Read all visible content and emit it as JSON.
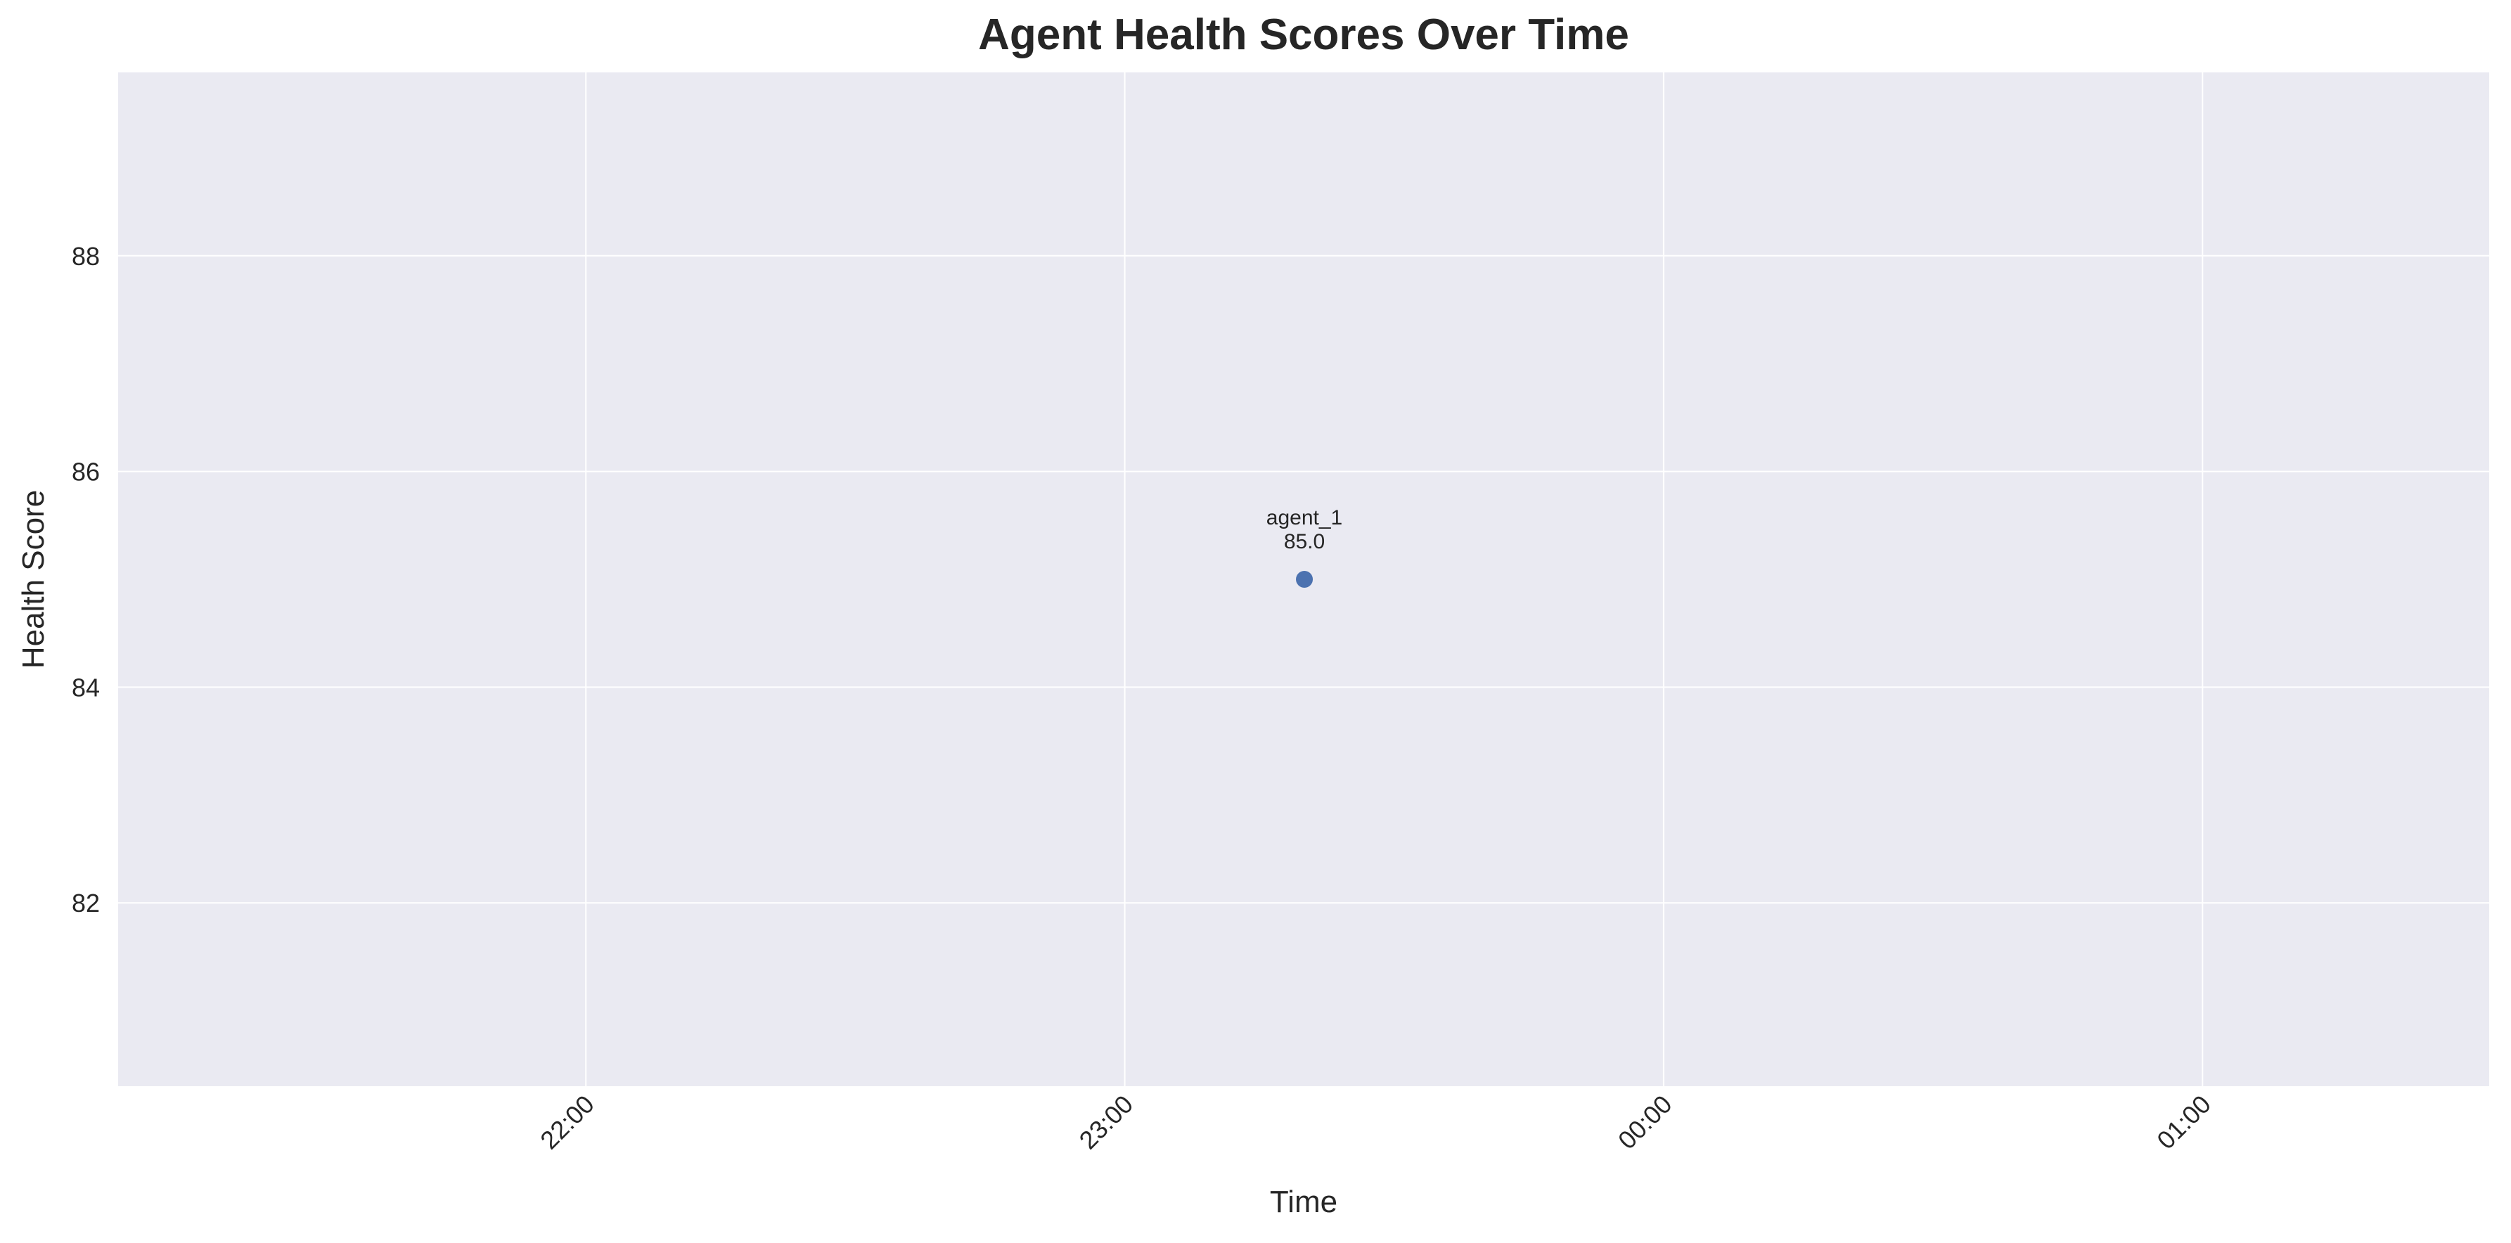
{
  "chart_data": {
    "type": "scatter",
    "title": "Agent Health Scores Over Time",
    "xlabel": "Time",
    "ylabel": "Health Score",
    "x_tick_labels": [
      "22:00",
      "23:00",
      "00:00",
      "01:00"
    ],
    "y_tick_labels": [
      "82",
      "84",
      "86",
      "88"
    ],
    "grid": true,
    "background_color": "#eaeaf2",
    "grid_color": "#ffffff",
    "series": [
      {
        "color": "#4c72b0",
        "points": [
          {
            "x": "23:20",
            "y": 85.0,
            "label_name": "agent_1",
            "label_value": "85.0"
          }
        ]
      }
    ]
  }
}
